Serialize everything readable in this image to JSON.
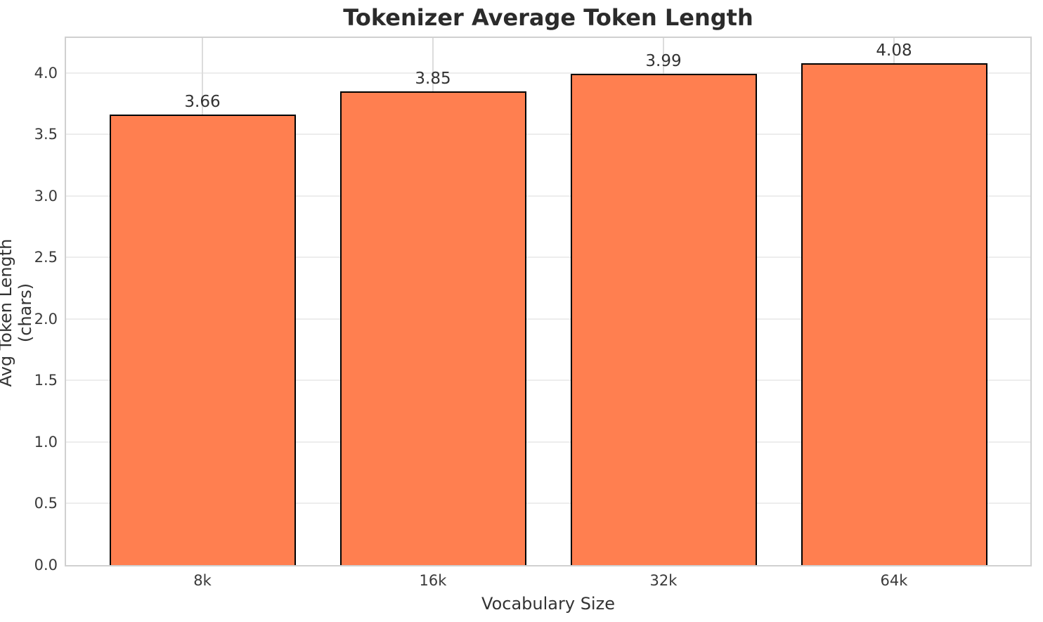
{
  "chart_data": {
    "type": "bar",
    "title": "Tokenizer Average Token Length",
    "xlabel": "Vocabulary Size",
    "ylabel": "Avg Token Length (chars)",
    "categories": [
      "8k",
      "16k",
      "32k",
      "64k"
    ],
    "values": [
      3.66,
      3.85,
      3.99,
      4.08
    ],
    "bar_value_labels": [
      "3.66",
      "3.85",
      "3.99",
      "4.08"
    ],
    "yticks": [
      0.0,
      0.5,
      1.0,
      1.5,
      2.0,
      2.5,
      3.0,
      3.5,
      4.0
    ],
    "ytick_labels": [
      "0.0",
      "0.5",
      "1.0",
      "1.5",
      "2.0",
      "2.5",
      "3.0",
      "3.5",
      "4.0"
    ],
    "ylim": [
      0,
      4.284
    ],
    "grid": true,
    "legend": "none",
    "colors": {
      "bar_fill": "#FF7F50",
      "bar_edge": "#000000",
      "h_grid": "#ededed",
      "v_grid": "#dcdcdc",
      "spine": "#d0d0d0",
      "title_text": "#2b2b2b",
      "axis_text": "#333333",
      "tick_text": "#3a3a3a"
    }
  }
}
